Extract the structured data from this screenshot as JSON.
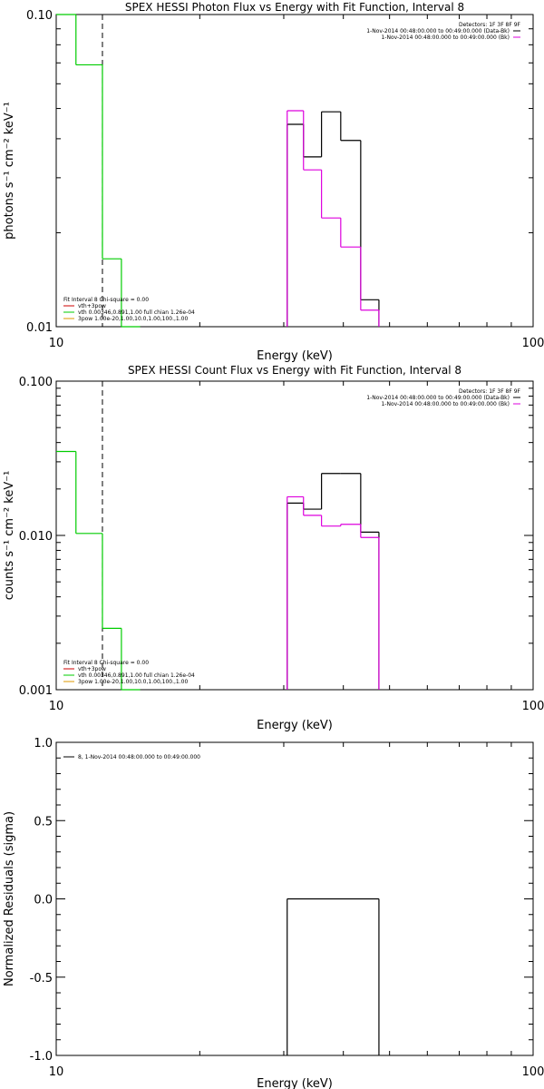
{
  "colors": {
    "black": "#000000",
    "magenta": "#dd00dd",
    "green": "#00cc00",
    "red": "#cc0000",
    "orange": "#dd9900"
  },
  "chart_data": [
    {
      "type": "line",
      "step": true,
      "title": "SPEX HESSI Photon Flux vs Energy with Fit Function, Interval 8",
      "xlabel": "Energy (keV)",
      "ylabel": "photons s⁻¹ cm⁻² keV⁻¹",
      "xscale": "log",
      "yscale": "log",
      "xlim": [
        10,
        100
      ],
      "ylim": [
        0.01,
        0.1
      ],
      "xticks": [
        {
          "v": 10,
          "label": "10"
        },
        {
          "v": 100,
          "label": "100"
        }
      ],
      "yticks": [
        {
          "v": 0.01,
          "label": "0.01"
        },
        {
          "v": 0.1,
          "label": "0.10"
        }
      ],
      "vline": 12.5,
      "legend_header": "Detectors: 1F 3F 8F 9F",
      "legend": [
        {
          "text": "1-Nov-2014 00:48:00.000 to 00:49:00.000 (Data-Bk)",
          "color": "#000000"
        },
        {
          "text": "1-Nov-2014 00:48:00.000 to 00:49:00.000 (Bk)",
          "color": "#dd00dd"
        }
      ],
      "fit_header": "Fit Interval 8   Chi-square = 0.00",
      "fit_legend": [
        {
          "text": "vth+3pow",
          "color": "#cc0000"
        },
        {
          "text": "vth 0.00346,0.891,1.00  full chian 1.26e-04",
          "color": "#00cc00"
        },
        {
          "text": "3pow 1.00e-20,1.00,10.0,1.00,100.,1.00",
          "color": "#dd9900"
        }
      ],
      "series": [
        {
          "color": "#000000",
          "bins": [
            [
              30.5,
              33.0,
              0.0445
            ],
            [
              33.0,
              36.0,
              0.035
            ],
            [
              36.0,
              39.5,
              0.0488
            ],
            [
              39.5,
              43.5,
              0.0395
            ],
            [
              43.5,
              47.5,
              0.0122
            ]
          ],
          "drop_right": true
        },
        {
          "color": "#dd00dd",
          "bins": [
            [
              30.5,
              33.0,
              0.0492
            ],
            [
              33.0,
              36.0,
              0.0318
            ],
            [
              36.0,
              39.5,
              0.0223
            ],
            [
              39.5,
              43.5,
              0.018
            ],
            [
              43.5,
              47.5,
              0.0113
            ]
          ],
          "drop_right": true
        },
        {
          "color": "#00cc00",
          "bins": [
            [
              10.0,
              11.0,
              0.1
            ],
            [
              11.0,
              12.5,
              0.069
            ],
            [
              12.5,
              13.7,
              0.0165
            ],
            [
              13.7,
              15.0,
              0.01
            ]
          ]
        }
      ]
    },
    {
      "type": "line",
      "step": true,
      "title": "SPEX HESSI Count Flux vs Energy with Fit Function, Interval 8",
      "xlabel": "Energy (keV)",
      "ylabel": "counts s⁻¹ cm⁻² keV⁻¹",
      "xscale": "log",
      "yscale": "log",
      "xlim": [
        10,
        100
      ],
      "ylim": [
        0.001,
        0.1
      ],
      "xticks": [
        {
          "v": 10,
          "label": "10"
        },
        {
          "v": 100,
          "label": "100"
        }
      ],
      "yticks": [
        {
          "v": 0.001,
          "label": "0.001"
        },
        {
          "v": 0.01,
          "label": "0.010"
        },
        {
          "v": 0.1,
          "label": "0.100"
        }
      ],
      "vline": 12.5,
      "legend_header": "Detectors: 1F 3F 8F 9F",
      "legend": [
        {
          "text": "1-Nov-2014 00:48:00.000 to 00:49:00.000 (Data-Bk)",
          "color": "#000000"
        },
        {
          "text": "1-Nov-2014 00:48:00.000 to 00:49:00.000 (Bk)",
          "color": "#dd00dd"
        }
      ],
      "fit_header": "Fit Interval 8   Chi-square = 0.00",
      "fit_legend": [
        {
          "text": "vth+3pow",
          "color": "#cc0000"
        },
        {
          "text": "vth 0.00346,0.891,1.00  full chian 1.26e-04",
          "color": "#00cc00"
        },
        {
          "text": "3pow 1.00e-20,1.00,10.0,1.00,100.,1.00",
          "color": "#dd9900"
        }
      ],
      "series": [
        {
          "color": "#000000",
          "bins": [
            [
              30.5,
              33.0,
              0.0162
            ],
            [
              33.0,
              36.0,
              0.0148
            ],
            [
              36.0,
              39.5,
              0.0252
            ],
            [
              39.5,
              43.5,
              0.0252
            ],
            [
              43.5,
              47.5,
              0.0105
            ]
          ],
          "drop_right": true
        },
        {
          "color": "#dd00dd",
          "bins": [
            [
              30.5,
              33.0,
              0.0178
            ],
            [
              33.0,
              36.0,
              0.0135
            ],
            [
              36.0,
              39.5,
              0.0115
            ],
            [
              39.5,
              43.5,
              0.0118
            ],
            [
              43.5,
              47.5,
              0.0097
            ]
          ],
          "drop_right": true
        },
        {
          "color": "#00cc00",
          "bins": [
            [
              10.0,
              11.0,
              0.035
            ],
            [
              11.0,
              12.5,
              0.0103
            ],
            [
              12.5,
              13.7,
              0.0025
            ],
            [
              13.7,
              15.0,
              0.001
            ]
          ]
        }
      ]
    },
    {
      "type": "line",
      "step": true,
      "title": "",
      "xlabel": "Energy (keV)",
      "ylabel": "Normalized Residuals (sigma)",
      "xscale": "log",
      "yscale": "linear",
      "xlim": [
        10,
        100
      ],
      "ylim": [
        -1,
        1
      ],
      "xticks": [
        {
          "v": 10,
          "label": "10"
        },
        {
          "v": 100,
          "label": "100"
        }
      ],
      "yticks": [
        {
          "v": -1,
          "label": "-1.0"
        },
        {
          "v": -0.5,
          "label": "-0.5"
        },
        {
          "v": 0,
          "label": "0.0"
        },
        {
          "v": 0.5,
          "label": "0.5"
        },
        {
          "v": 1,
          "label": "1.0"
        }
      ],
      "legend": [
        {
          "text": "8, 1-Nov-2014 00:48:00.000 to 00:49:00.000",
          "color": "#000000"
        }
      ],
      "series": [
        {
          "color": "#000000",
          "bins": [
            [
              30.5,
              47.5,
              0.0
            ]
          ],
          "drop_left_to": -1,
          "drop_right_to": -1
        }
      ]
    }
  ]
}
